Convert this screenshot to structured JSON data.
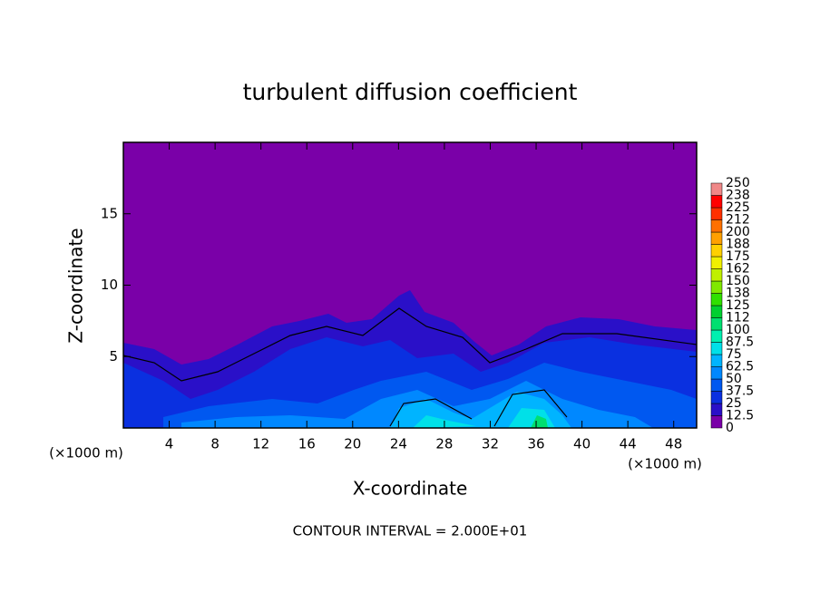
{
  "chart_data": {
    "type": "contour",
    "title": "turbulent diffusion coefficient",
    "xlabel": "X-coordinate",
    "ylabel": "Z-coordinate",
    "x_unit_left": "(×1000 m)",
    "x_unit_right": "(×1000 m)",
    "footnote": "CONTOUR INTERVAL = 2.000E+01",
    "xlim": [
      0,
      50
    ],
    "xticks": [
      4,
      8,
      12,
      16,
      20,
      24,
      28,
      32,
      36,
      40,
      44,
      48
    ],
    "ylim": [
      0,
      20
    ],
    "yticks": [
      5,
      10,
      15
    ],
    "colorbar": {
      "levels": [
        0,
        12.5,
        25,
        37.5,
        50,
        62.5,
        75,
        87.5,
        100,
        112,
        125,
        138,
        150,
        162,
        175,
        188,
        200,
        212,
        225,
        238,
        250
      ],
      "colors": [
        "#7a00a8",
        "#2a10c8",
        "#0a30e0",
        "#0058f0",
        "#0088ff",
        "#00b4ff",
        "#00e0e8",
        "#00f0b0",
        "#00e070",
        "#00d030",
        "#30e000",
        "#80e800",
        "#c0f000",
        "#f0f000",
        "#ffd000",
        "#ffa000",
        "#ff7000",
        "#ff3000",
        "#ff0000",
        "#f08888"
      ]
    }
  }
}
